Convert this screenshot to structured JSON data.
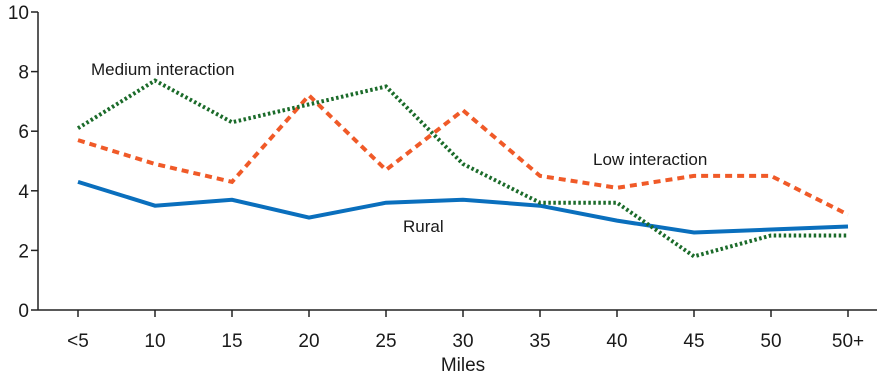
{
  "chart_data": {
    "type": "line",
    "title": "",
    "xlabel": "Miles",
    "ylabel": "",
    "categories": [
      "<5",
      "10",
      "15",
      "20",
      "25",
      "30",
      "35",
      "40",
      "45",
      "50",
      "50+"
    ],
    "ylim": [
      0,
      10
    ],
    "yticks": [
      0,
      2,
      4,
      6,
      8,
      10
    ],
    "grid": false,
    "series": [
      {
        "name": "Rural",
        "color": "#0a6fbd",
        "style": "solid",
        "values": [
          4.3,
          3.5,
          3.7,
          3.1,
          3.6,
          3.7,
          3.5,
          3.0,
          2.6,
          2.7,
          2.8
        ]
      },
      {
        "name": "Low interaction",
        "color": "#f05a28",
        "style": "dashed",
        "values": [
          5.7,
          4.9,
          4.3,
          7.2,
          4.7,
          6.7,
          4.5,
          4.1,
          4.5,
          4.5,
          3.2
        ]
      },
      {
        "name": "Medium interaction",
        "color": "#1b6b2a",
        "style": "dotted",
        "values": [
          6.1,
          7.7,
          6.3,
          6.9,
          7.5,
          4.9,
          3.6,
          3.6,
          1.8,
          2.5,
          2.5
        ]
      }
    ]
  }
}
